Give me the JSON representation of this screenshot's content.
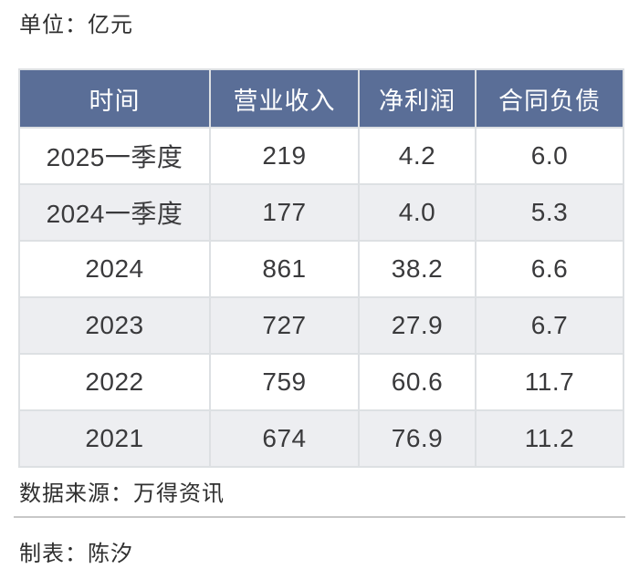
{
  "page": {
    "unit_label": "单位：亿元",
    "source_label": "数据来源：万得资讯",
    "author_label": "制表：陈汐"
  },
  "table": {
    "columns": [
      "时间",
      "营业收入",
      "净利润",
      "合同负债"
    ],
    "rows": [
      [
        "2025一季度",
        "219",
        "4.2",
        "6.0"
      ],
      [
        "2024一季度",
        "177",
        "4.0",
        "5.3"
      ],
      [
        "2024",
        "861",
        "38.2",
        "6.6"
      ],
      [
        "2023",
        "727",
        "27.9",
        "6.7"
      ],
      [
        "2022",
        "759",
        "60.6",
        "11.7"
      ],
      [
        "2021",
        "674",
        "76.9",
        "11.2"
      ]
    ]
  },
  "colors": {
    "header_bg": "#5a6e97",
    "header_text": "#ffffff",
    "row_alt_bg": "#edeef1",
    "cell_border": "#dde0e3",
    "body_text": "#3a3a3c",
    "divider": "#c7c7c7",
    "page_bg": "#ffffff"
  },
  "chart_data": {
    "type": "table",
    "title": "单位：亿元",
    "columns": [
      "时间",
      "营业收入",
      "净利润",
      "合同负债"
    ],
    "rows": [
      [
        "2025一季度",
        219,
        4.2,
        6.0
      ],
      [
        "2024一季度",
        177,
        4.0,
        5.3
      ],
      [
        "2024",
        861,
        38.2,
        6.6
      ],
      [
        "2023",
        727,
        27.9,
        6.7
      ],
      [
        "2022",
        759,
        60.6,
        11.7
      ],
      [
        "2021",
        674,
        76.9,
        11.2
      ]
    ],
    "source": "数据来源：万得资讯",
    "author": "制表：陈汐"
  }
}
